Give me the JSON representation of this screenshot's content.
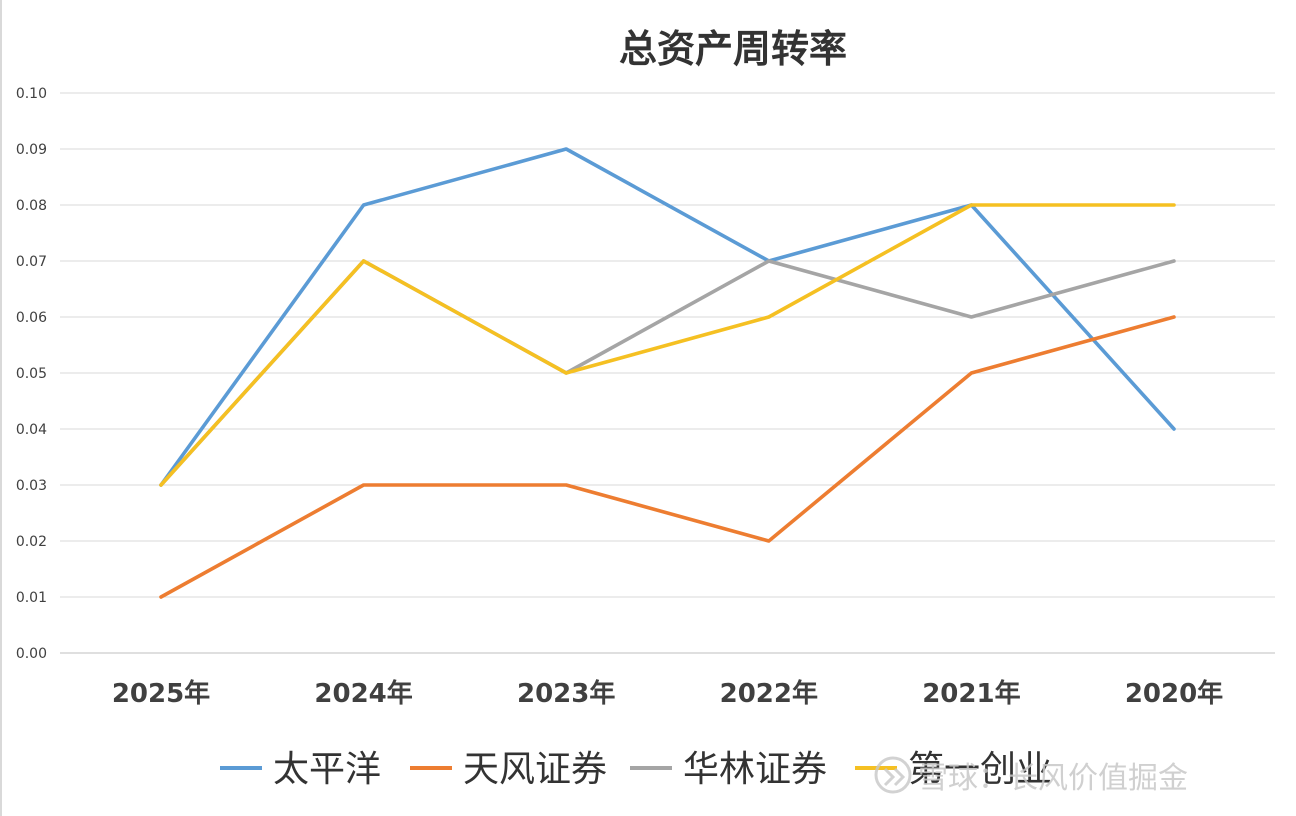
{
  "chart_data": {
    "type": "line",
    "title": "总资产周转率",
    "categories": [
      "2025年",
      "2024年",
      "2023年",
      "2022年",
      "2021年",
      "2020年"
    ],
    "ylim": [
      0,
      0.1
    ],
    "yticks": [
      "0.00",
      "0.01",
      "0.02",
      "0.03",
      "0.04",
      "0.05",
      "0.06",
      "0.07",
      "0.08",
      "0.09",
      "0.10"
    ],
    "grid": true,
    "legend_position": "bottom",
    "series": [
      {
        "name": "太平洋",
        "color": "#5b9bd5",
        "values": [
          0.03,
          0.08,
          0.09,
          0.07,
          0.08,
          0.04
        ]
      },
      {
        "name": "天风证券",
        "color": "#ed7d31",
        "values": [
          0.01,
          0.03,
          0.03,
          0.02,
          0.05,
          0.06
        ]
      },
      {
        "name": "华林证券",
        "color": "#a5a5a5",
        "values": [
          0.03,
          0.07,
          0.05,
          0.07,
          0.06,
          0.07
        ]
      },
      {
        "name": "第一创业",
        "color": "#f5c022",
        "values": [
          0.03,
          0.07,
          0.05,
          0.06,
          0.08,
          0.08
        ]
      }
    ]
  },
  "watermark": {
    "text": "雪球：长风价值掘金",
    "icon": "snowball-logo-icon"
  }
}
